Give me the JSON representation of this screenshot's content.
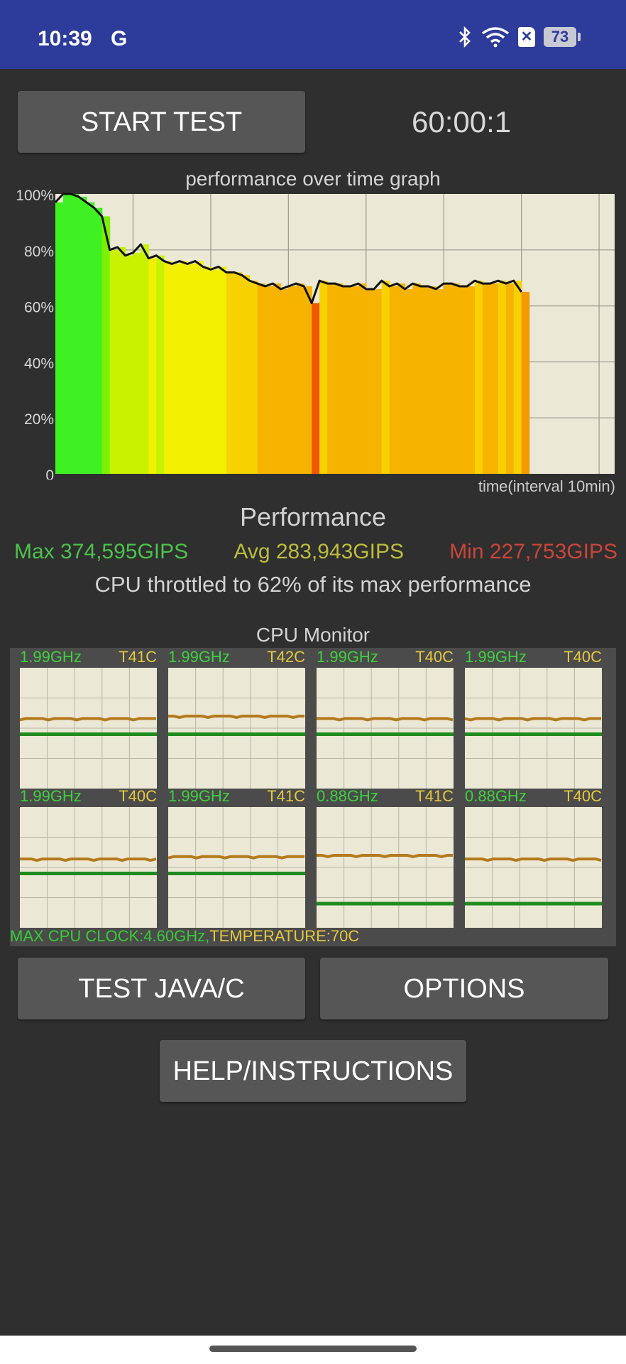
{
  "status_bar": {
    "time": "10:39",
    "carrier_icon": "G",
    "icons": [
      "bluetooth-icon",
      "wifi-icon",
      "no-sim-icon"
    ],
    "battery": "73"
  },
  "header": {
    "start_button": "START TEST",
    "timer": "60:00:1"
  },
  "performance_graph": {
    "title": "performance over time graph",
    "time_label": "time(interval 10min)"
  },
  "chart_data": {
    "type": "line",
    "title": "performance over time graph",
    "xlabel": "time(interval 10min)",
    "ylabel": "",
    "ylim": [
      0,
      100
    ],
    "ytick_labels": [
      "100%",
      "80%",
      "60%",
      "40%",
      "20%",
      "0"
    ],
    "yticks": [
      100,
      80,
      60,
      40,
      20,
      0
    ],
    "x_minutes": [
      0,
      1,
      2,
      3,
      4,
      5,
      6,
      7,
      8,
      9,
      10,
      11,
      12,
      13,
      14,
      15,
      16,
      17,
      18,
      19,
      20,
      21,
      22,
      23,
      24,
      25,
      26,
      27,
      28,
      29,
      30,
      31,
      32,
      33,
      34,
      35,
      36,
      37,
      38,
      39,
      40,
      41,
      42,
      43,
      44,
      45,
      46,
      47,
      48,
      49,
      50,
      51,
      52,
      53,
      54,
      55,
      56,
      57,
      58,
      59,
      60
    ],
    "values": [
      97,
      100,
      100,
      99,
      97,
      95,
      92,
      80,
      81,
      78,
      79,
      82,
      77,
      78,
      76,
      75,
      76,
      75,
      76,
      74,
      73,
      74,
      72,
      72,
      71,
      69,
      68,
      67,
      68,
      66,
      67,
      68,
      67,
      61,
      69,
      68,
      68,
      67,
      67,
      68,
      66,
      66,
      69,
      67,
      68,
      66,
      68,
      67,
      67,
      66,
      68,
      68,
      67,
      67,
      69,
      68,
      68,
      69,
      68,
      69,
      65
    ],
    "grid": true,
    "vertical_gridlines_every_minutes": 10,
    "colors": {
      "high": "#40ee20",
      "mid": "#f5f000",
      "low": "#f4a000",
      "lowest": "#f05a00",
      "background": "#ebe8d5"
    }
  },
  "performance": {
    "heading": "Performance",
    "max": "Max 374,595GIPS",
    "avg": "Avg 283,943GIPS",
    "min": "Min 227,753GIPS",
    "throttle": "CPU throttled to 62% of its max performance"
  },
  "cpu_monitor": {
    "title": "CPU Monitor",
    "cores": [
      {
        "freq": "1.99GHz",
        "temp": "T41C",
        "clock_level": 0.45,
        "temp_level": 0.58
      },
      {
        "freq": "1.99GHz",
        "temp": "T42C",
        "clock_level": 0.45,
        "temp_level": 0.6
      },
      {
        "freq": "1.99GHz",
        "temp": "T40C",
        "clock_level": 0.45,
        "temp_level": 0.58
      },
      {
        "freq": "1.99GHz",
        "temp": "T40C",
        "clock_level": 0.45,
        "temp_level": 0.58
      },
      {
        "freq": "1.99GHz",
        "temp": "T40C",
        "clock_level": 0.45,
        "temp_level": 0.57
      },
      {
        "freq": "1.99GHz",
        "temp": "T41C",
        "clock_level": 0.45,
        "temp_level": 0.59
      },
      {
        "freq": "0.88GHz",
        "temp": "T41C",
        "clock_level": 0.2,
        "temp_level": 0.6
      },
      {
        "freq": "0.88GHz",
        "temp": "T40C",
        "clock_level": 0.2,
        "temp_level": 0.57
      }
    ],
    "footer_clock": "MAX CPU CLOCK:4.60GHz,",
    "footer_temp": "TEMPERATURE:70C",
    "colors": {
      "freq": "#3dd23d",
      "temp": "#e5c83e",
      "clock_line": "#1e8c1e",
      "temp_line": "#b57a1c",
      "chart_bg": "#ebe8d5"
    }
  },
  "buttons": {
    "test": "TEST JAVA/C",
    "options": "OPTIONS",
    "help": "HELP/INSTRUCTIONS"
  }
}
